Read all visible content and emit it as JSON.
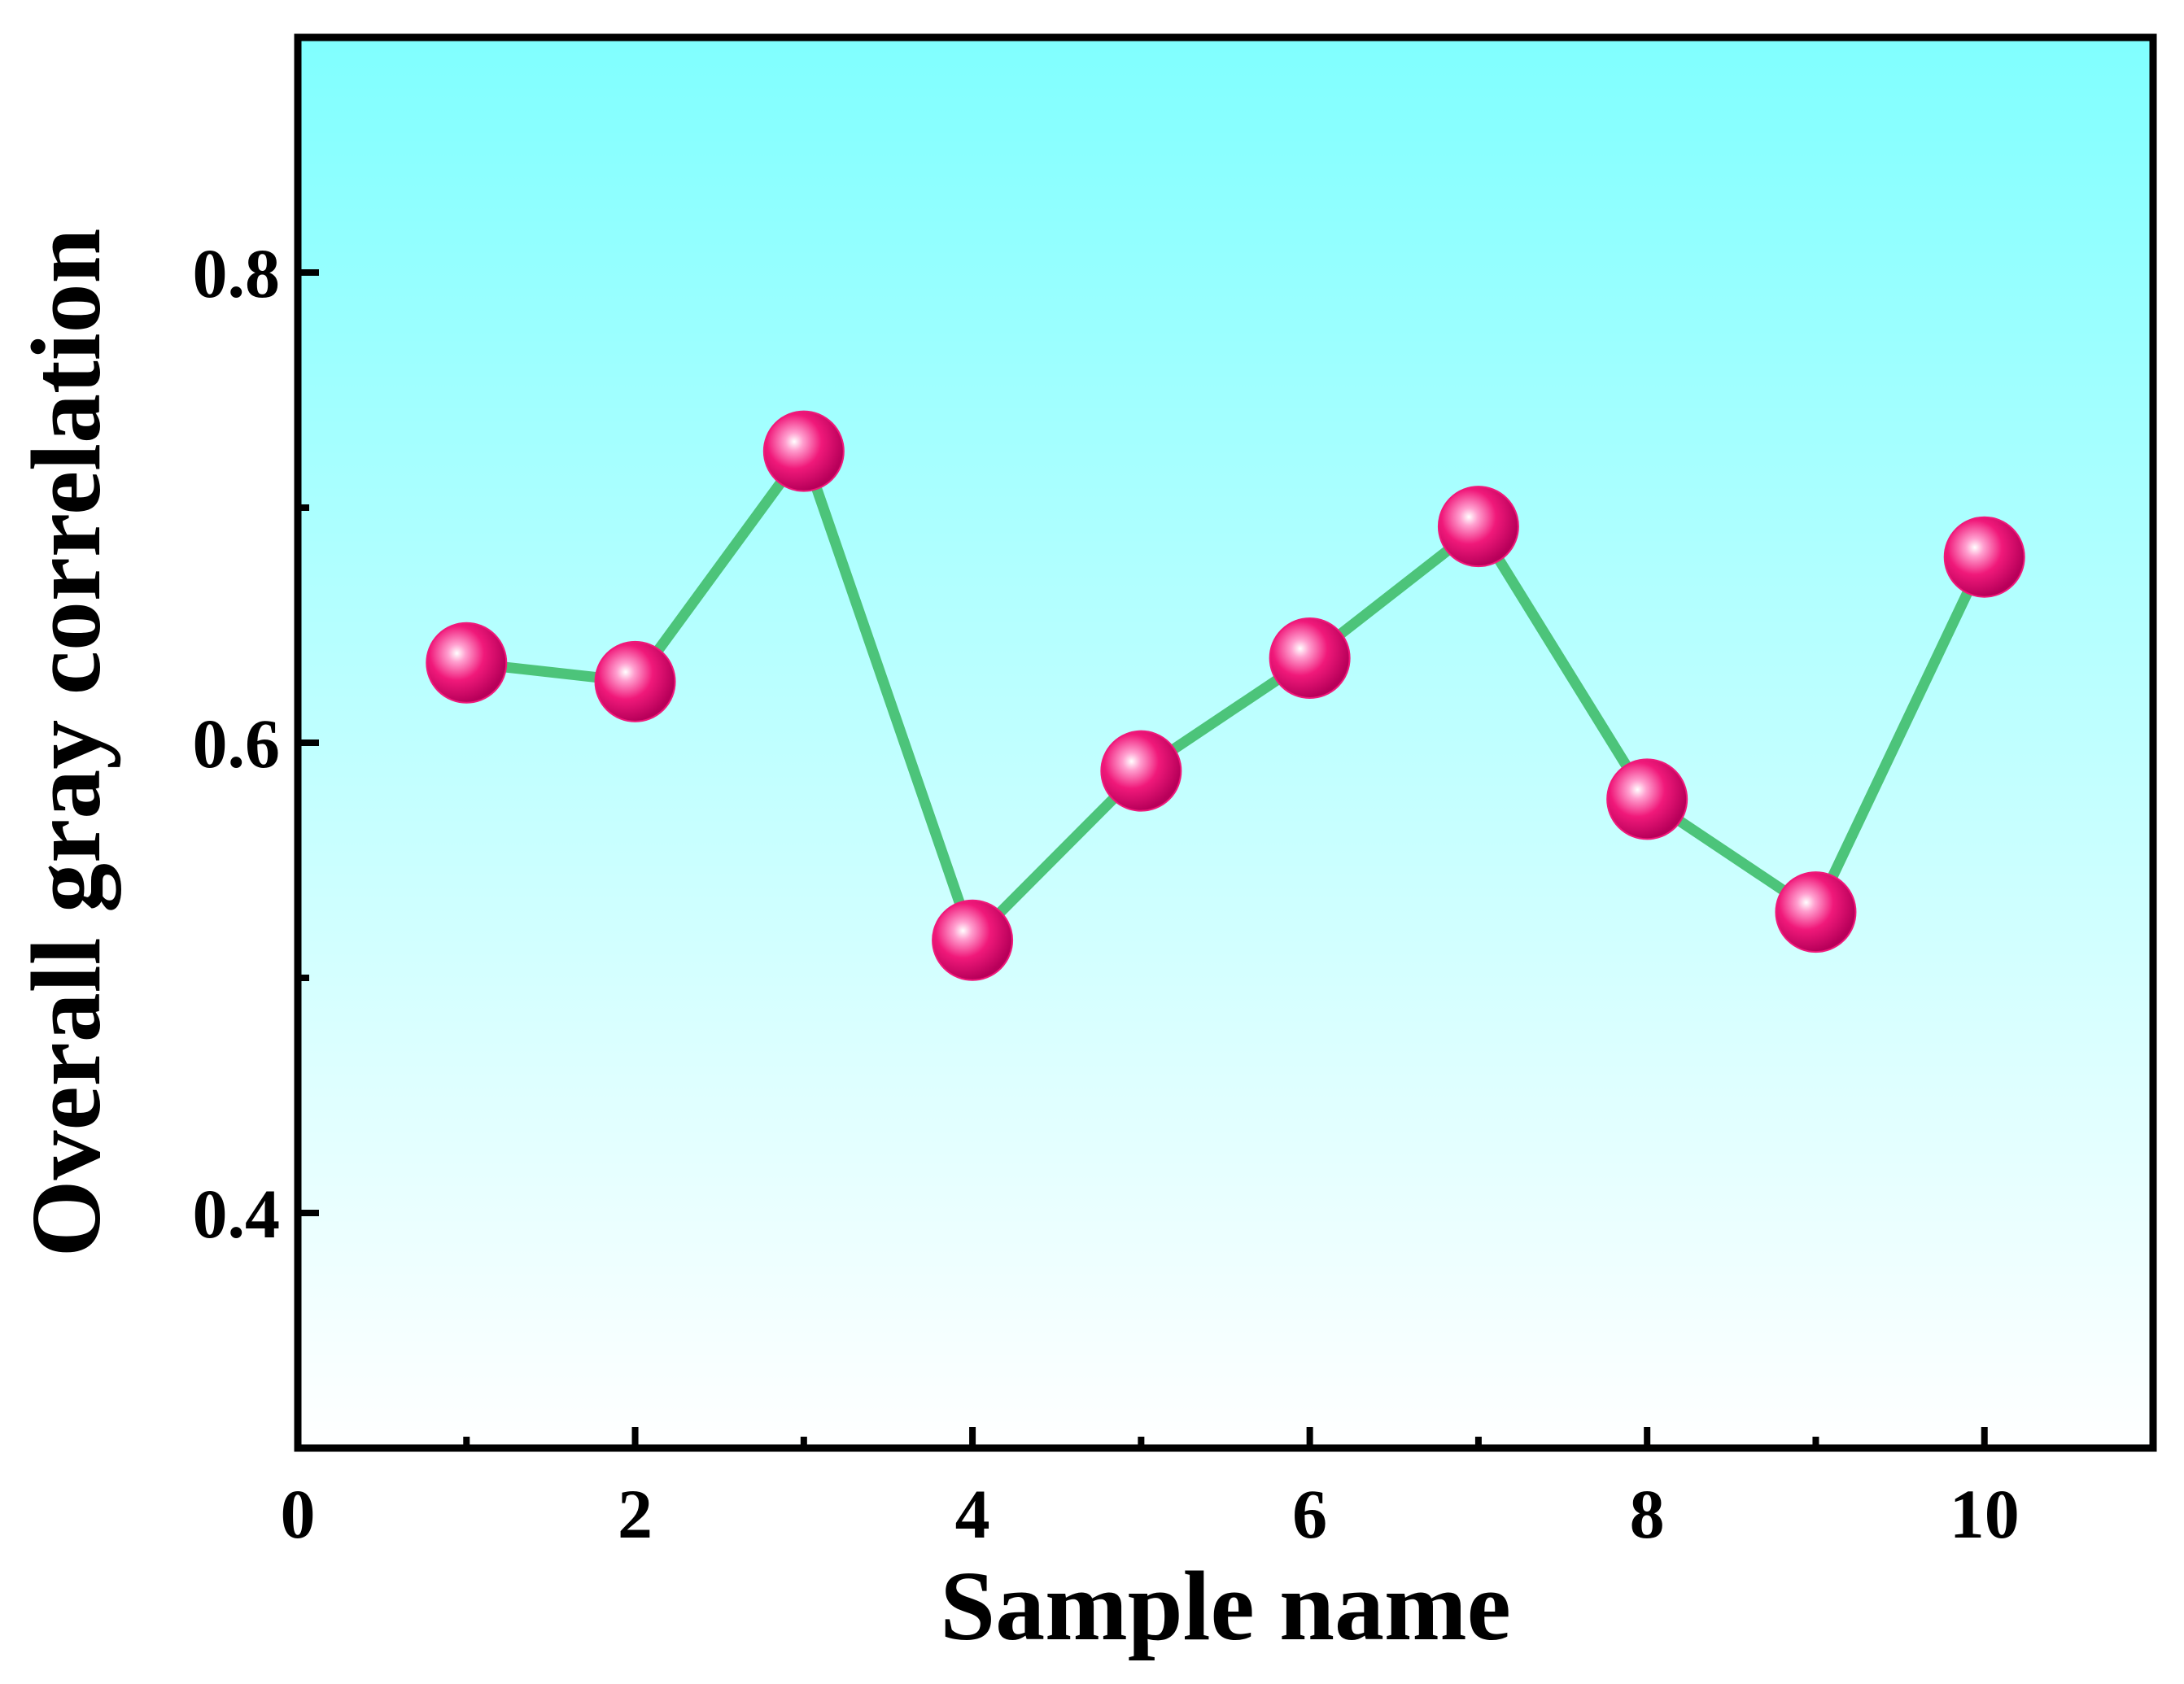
{
  "chart_data": {
    "type": "line",
    "xlabel": "Sample name",
    "ylabel": "Overall gray correlation",
    "xlim": [
      0,
      11
    ],
    "ylim": [
      0.3,
      0.9
    ],
    "x_ticks": [
      0,
      2,
      4,
      6,
      8,
      10
    ],
    "x_minor_ticks": [
      1,
      3,
      5,
      7,
      9
    ],
    "y_ticks": [
      0.4,
      0.6,
      0.8
    ],
    "y_tick_labels": [
      "0.4",
      "0.6",
      "0.8"
    ],
    "x_tick_labels": [
      "0",
      "2",
      "4",
      "6",
      "8",
      "10"
    ],
    "grid": false,
    "background_gradient": [
      "#80ffff",
      "#ffffff"
    ],
    "series": [
      {
        "x": [
          1,
          2,
          3,
          4,
          5,
          6,
          7,
          8,
          9,
          10
        ],
        "values": [
          0.634,
          0.626,
          0.724,
          0.516,
          0.588,
          0.636,
          0.692,
          0.576,
          0.528,
          0.679
        ],
        "line_color": "#4cc47a",
        "marker_color": "#f0197a"
      }
    ]
  }
}
